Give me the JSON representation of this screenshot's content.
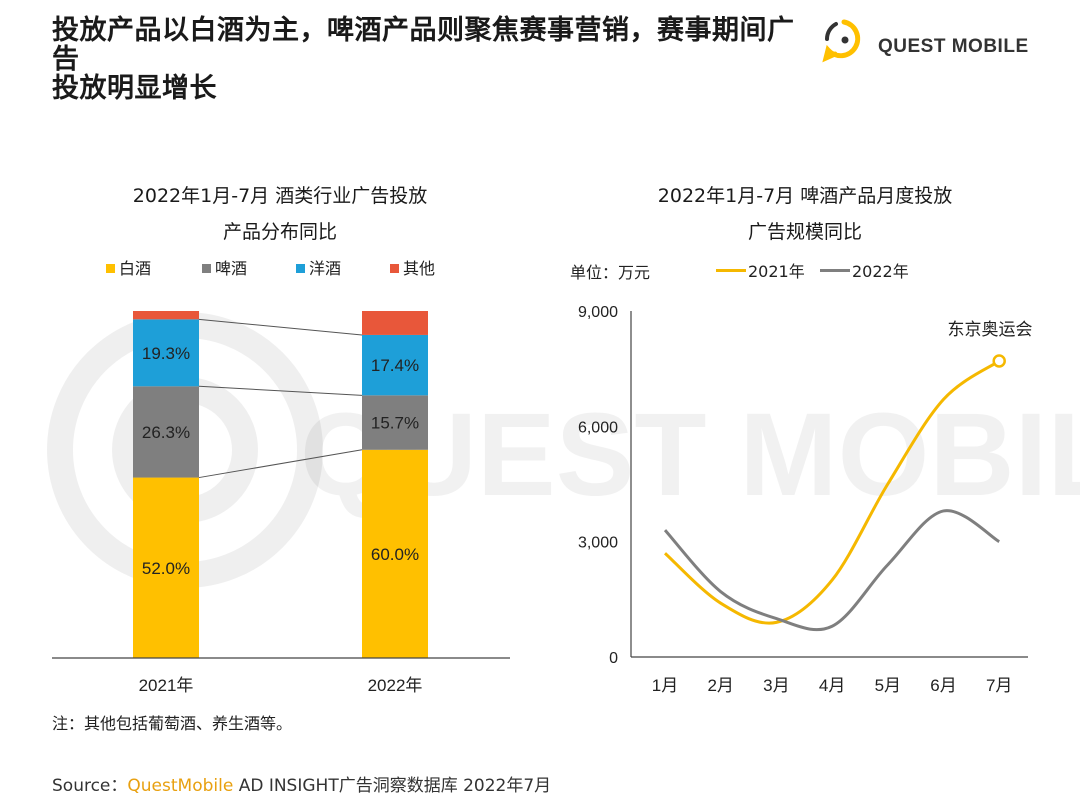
{
  "header": {
    "title_line1": "投放产品以白酒为主，啤酒产品则聚焦赛事营销，赛事期间广告",
    "title_line2": "投放明显增长",
    "logo_text": "QUEST MOBILE",
    "watermark_text": "QUEST MOBILE"
  },
  "colors": {
    "baijiu": "#FFC000",
    "pijiu": "#7F7F7F",
    "yangjiu": "#1E9FD8",
    "qita": "#E8573A",
    "line2021": "#F5B800",
    "line2022": "#7F7F7F"
  },
  "chart_data": [
    {
      "type": "bar",
      "stacked": true,
      "title_line1": "2022年1月-7月 酒类行业广告投放",
      "title_line2": "产品分布同比",
      "categories": [
        "2021年",
        "2022年"
      ],
      "series": [
        {
          "name": "白酒",
          "values": [
            52.0,
            60.0
          ],
          "labels": [
            "52.0%",
            "60.0%"
          ]
        },
        {
          "name": "啤酒",
          "values": [
            26.3,
            15.7
          ],
          "labels": [
            "26.3%",
            "15.7%"
          ]
        },
        {
          "name": "洋酒",
          "values": [
            19.3,
            17.4
          ],
          "labels": [
            "19.3%",
            "17.4%"
          ]
        },
        {
          "name": "其他",
          "values": [
            2.4,
            6.9
          ],
          "labels": [
            "",
            ""
          ]
        }
      ],
      "ylim": [
        0,
        100
      ]
    },
    {
      "type": "line",
      "title_line1": "2022年1月-7月 啤酒产品月度投放",
      "title_line2": "广告规模同比",
      "unit_label": "单位：万元",
      "x": [
        "1月",
        "2月",
        "3月",
        "4月",
        "5月",
        "6月",
        "7月"
      ],
      "series": [
        {
          "name": "2021年",
          "values": [
            2700,
            1400,
            900,
            2000,
            4500,
            6700,
            7700
          ]
        },
        {
          "name": "2022年",
          "values": [
            3300,
            1700,
            1000,
            800,
            2400,
            3800,
            3000
          ]
        }
      ],
      "y_ticks": [
        0,
        3000,
        6000,
        9000
      ],
      "y_tick_labels": [
        "0",
        "3,000",
        "6,000",
        "9,000"
      ],
      "ylim": [
        0,
        9000
      ],
      "annotation": "东京奥运会"
    }
  ],
  "note": "注：其他包括葡萄酒、养生酒等。",
  "source": {
    "prefix": "Source：",
    "brand": "QuestMobile",
    "rest": " AD INSIGHT广告洞察数据库 2022年7月"
  }
}
